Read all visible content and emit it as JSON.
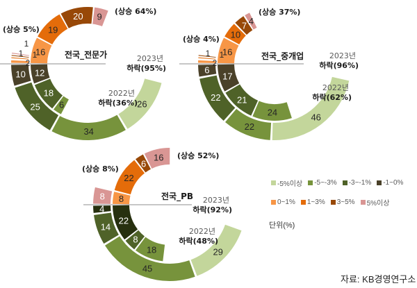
{
  "colors": {
    "neg_5_plus": "#c3d69b",
    "neg_5_3": "#77933c",
    "neg_3_1": "#4f6228",
    "neg_1_0": "#4a4129",
    "pos_0_1": "#f79646",
    "pos_1_3": "#e46c0a",
    "pos_3_5": "#984807",
    "pos_5_plus": "#d99694"
  },
  "legend": {
    "row1": [
      {
        "label": "-5%이상",
        "color": "#c3d69b"
      },
      {
        "label": "-5~-3%",
        "color": "#77933c"
      },
      {
        "label": "-3~-1%",
        "color": "#4f6228"
      },
      {
        "label": "-1~0%",
        "color": "#4a4129"
      }
    ],
    "row2": [
      {
        "label": "0~1%",
        "color": "#f79646"
      },
      {
        "label": "1~3%",
        "color": "#e46c0a"
      },
      {
        "label": "3~5%",
        "color": "#984807"
      },
      {
        "label": "5%이상",
        "color": "#d99694"
      }
    ]
  },
  "unit_label": "단위(%)",
  "source_label": "자료: KB경영연구소",
  "chart_data": [
    {
      "type": "donut",
      "title": "전국_전문가",
      "rings": [
        {
          "year": "2022년",
          "ring": "inner",
          "rising_label": "(상승 64%)",
          "falling_label": "하락(36%)",
          "rising": [
            {
              "category": "0~1%",
              "value": 16
            },
            {
              "category": "1~3%",
              "value": 19
            },
            {
              "category": "3~5%",
              "value": 20
            },
            {
              "category": "5%이상",
              "value": 9
            }
          ],
          "falling": [
            {
              "category": "-1~0%",
              "value": 12
            },
            {
              "category": "-3~-1%",
              "value": 18
            },
            {
              "category": "-5~-3%",
              "value": 6
            }
          ]
        },
        {
          "year": "2023년",
          "ring": "outer",
          "rising_label": "(상승 5%)",
          "falling_label": "하락(95%)",
          "rising": [
            {
              "category": "0~1%",
              "value": 2
            },
            {
              "category": "1~3%",
              "value": 1
            },
            {
              "category": "3~5%",
              "value": 1
            },
            {
              "category": "5%이상",
              "value": 1
            }
          ],
          "falling": [
            {
              "category": "-1~0%",
              "value": 10
            },
            {
              "category": "-3~-1%",
              "value": 25
            },
            {
              "category": "-5~-3%",
              "value": 34
            },
            {
              "category": "-5%이상",
              "value": 26
            }
          ]
        }
      ]
    },
    {
      "type": "donut",
      "title": "전국_중개업",
      "rings": [
        {
          "year": "2022년",
          "ring": "inner",
          "rising_label": "(상승 37%)",
          "falling_label": "하락(62%)",
          "rising": [
            {
              "category": "0~1%",
              "value": 16
            },
            {
              "category": "1~3%",
              "value": 10
            },
            {
              "category": "3~5%",
              "value": 7
            },
            {
              "category": "5%이상",
              "value": 4
            }
          ],
          "falling": [
            {
              "category": "-1~0%",
              "value": 17
            },
            {
              "category": "-3~-1%",
              "value": 21
            },
            {
              "category": "-5~-3%",
              "value": 24
            }
          ]
        },
        {
          "year": "2023년",
          "ring": "outer",
          "rising_label": "(상승 4%)",
          "falling_label": "하락(96%)",
          "rising": [
            {
              "category": "0~1%",
              "value": 2
            },
            {
              "category": "1~3%",
              "value": 1
            },
            {
              "category": "3~5%",
              "value": 1
            }
          ],
          "falling": [
            {
              "category": "-1~0%",
              "value": 6
            },
            {
              "category": "-3~-1%",
              "value": 22
            },
            {
              "category": "-5~-3%",
              "value": 22
            },
            {
              "category": "-5%이상",
              "value": 46
            }
          ]
        }
      ]
    },
    {
      "type": "donut",
      "title": "전국_PB",
      "rings": [
        {
          "year": "2022년",
          "ring": "inner",
          "rising_label": "(상승 52%)",
          "falling_label": "하락(48%)",
          "rising": [
            {
              "category": "0~1%",
              "value": 8
            },
            {
              "category": "1~3%",
              "value": 22
            },
            {
              "category": "3~5%",
              "value": 6
            },
            {
              "category": "5%이상",
              "value": 16
            }
          ],
          "falling": [
            {
              "category": "-1~0%",
              "value": 22
            },
            {
              "category": "-3~-1%",
              "value": 8
            },
            {
              "category": "-5~-3%",
              "value": 18
            }
          ]
        },
        {
          "year": "2023년",
          "ring": "outer",
          "rising_label": "(상승 8%)",
          "falling_label": "하락(92%)",
          "rising": [
            {
              "category": "5%이상",
              "value": 8
            }
          ],
          "falling": [
            {
              "category": "-1~0%",
              "value": 4
            },
            {
              "category": "-3~-1%",
              "value": 14
            },
            {
              "category": "-5~-3%",
              "value": 45
            },
            {
              "category": "-5%이상",
              "value": 29
            }
          ]
        }
      ]
    }
  ]
}
